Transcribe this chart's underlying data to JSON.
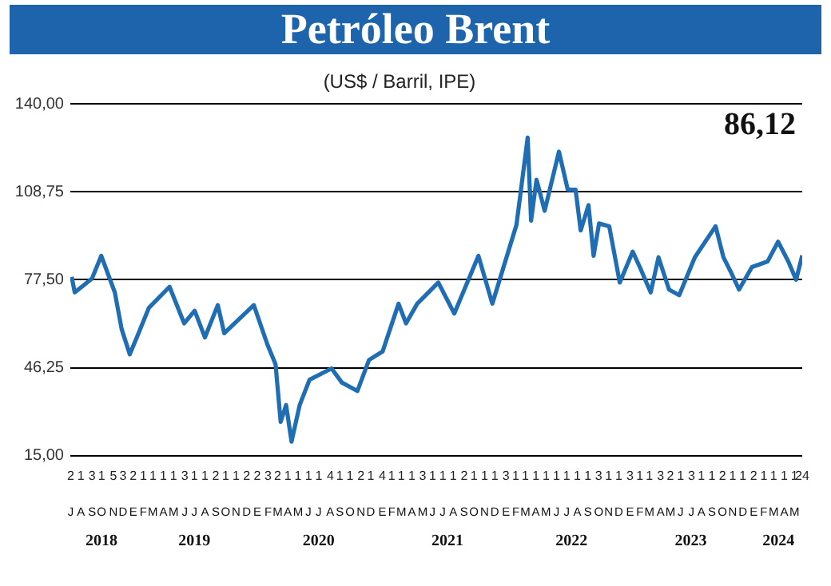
{
  "chart_data": {
    "type": "line",
    "title": "Petróleo Brent",
    "subtitle": "(US$ / Barril, IPE)",
    "color": "#1f6db3",
    "marker": "none",
    "grid": "y",
    "annotations": [
      "86,12",
      "J",
      "A",
      "S",
      "O",
      "N",
      "D",
      "E",
      "F",
      "M",
      "A",
      "M",
      "J",
      "J",
      "A",
      "S",
      "O",
      "N",
      "D",
      "E",
      "F",
      "M",
      "A",
      "M",
      "J",
      "J",
      "A",
      "S",
      "O",
      "N",
      "D",
      "E",
      "F",
      "M",
      "A",
      "M",
      "J",
      "J",
      "A",
      "S",
      "O",
      "N",
      "D",
      "E",
      "F",
      "M",
      "A",
      "M",
      "J",
      "J",
      "A",
      "S",
      "O",
      "N",
      "D",
      "E",
      "F",
      "M",
      "A",
      "M",
      "J",
      "J",
      "A",
      "S",
      "O",
      "N",
      "D",
      "E",
      "F",
      "M",
      "A",
      "M"
    ],
    "x": [
      "2018-07-05",
      "2018-07-14",
      "2018-08-14",
      "2018-09-03",
      "2018-09-30",
      "2018-11-09",
      "2018-11-29",
      "2018-12-23",
      "2019-01-16",
      "2019-02-17",
      "2019-04-19",
      "2019-06-01",
      "2019-07-02",
      "2019-08-01",
      "2019-09-08",
      "2019-09-27",
      "2019-12-23",
      "2020-02-01",
      "2020-02-25",
      "2020-03-11",
      "2020-03-27",
      "2020-04-12",
      "2020-05-06",
      "2020-06-04",
      "2020-08-08",
      "2020-09-07",
      "2020-10-23",
      "2020-11-26",
      "2021-01-05",
      "2021-02-21",
      "2021-03-15",
      "2021-04-17",
      "2021-06-18",
      "2021-08-04",
      "2021-10-14",
      "2021-11-24",
      "2022-02-03",
      "2022-03-08",
      "2022-03-18",
      "2022-04-03",
      "2022-04-27",
      "2022-06-08",
      "2022-07-04",
      "2022-07-27",
      "2022-08-11",
      "2022-09-03",
      "2022-09-18",
      "2022-10-04",
      "2022-11-03",
      "2022-12-04",
      "2023-01-11",
      "2023-02-01",
      "2023-03-05",
      "2023-03-28",
      "2023-04-28",
      "2023-05-28",
      "2023-07-13",
      "2023-09-12",
      "2023-10-05",
      "2023-10-28",
      "2023-11-20",
      "2023-12-28",
      "2024-02-12",
      "2024-03-14",
      "2024-04-13",
      "2024-05-06",
      "2024-05-24"
    ],
    "values": [
      78.5,
      73,
      76,
      78,
      86,
      73,
      60,
      51,
      58,
      67.5,
      75,
      62,
      66.5,
      57,
      68.5,
      58.5,
      68.5,
      54.5,
      47.5,
      27,
      33,
      20,
      33,
      42,
      46,
      41,
      38,
      49,
      52,
      69,
      62,
      69,
      76.5,
      65.5,
      86,
      69,
      97,
      128,
      98.5,
      113,
      102,
      123,
      109.5,
      109.5,
      95,
      104,
      86,
      97.5,
      96.5,
      76.5,
      87.5,
      82,
      73,
      85.5,
      74,
      72,
      85.5,
      96.5,
      85.5,
      80,
      74,
      82,
      84,
      91,
      84,
      77.5,
      86.12
    ],
    "ylim": [
      15,
      140
    ],
    "yticks": [
      {
        "value": 15,
        "label": "15,00"
      },
      {
        "value": 46.25,
        "label": "46,25"
      },
      {
        "value": 77.5,
        "label": "77,50"
      },
      {
        "value": 108.75,
        "label": "108,75"
      },
      {
        "value": 140,
        "label": "140,00"
      }
    ],
    "x2lim": [
      "2018-07-01",
      "2024-05-24"
    ],
    "x2ticks": [
      {
        "value": "2018-07-02",
        "label": "2"
      },
      {
        "value": "2018-08-01",
        "label": "1"
      },
      {
        "value": "2018-09-03",
        "label": "3"
      },
      {
        "value": "2018-10-01",
        "label": "1"
      },
      {
        "value": "2018-11-05",
        "label": "5"
      },
      {
        "value": "2018-12-03",
        "label": "3"
      },
      {
        "value": "2019-01-02",
        "label": "2"
      },
      {
        "value": "2019-02-01",
        "label": "1"
      },
      {
        "value": "2019-03-01",
        "label": "1"
      },
      {
        "value": "2019-04-01",
        "label": "1"
      },
      {
        "value": "2019-05-01",
        "label": "1"
      },
      {
        "value": "2019-06-03",
        "label": "3"
      },
      {
        "value": "2019-07-01",
        "label": "1"
      },
      {
        "value": "2019-08-01",
        "label": "1"
      },
      {
        "value": "2019-09-02",
        "label": "2"
      },
      {
        "value": "2019-10-01",
        "label": "1"
      },
      {
        "value": "2019-11-01",
        "label": "1"
      },
      {
        "value": "2019-12-02",
        "label": "2"
      },
      {
        "value": "2020-01-02",
        "label": "2"
      },
      {
        "value": "2020-02-03",
        "label": "3"
      },
      {
        "value": "2020-03-02",
        "label": "2"
      },
      {
        "value": "2020-04-01",
        "label": "1"
      },
      {
        "value": "2020-05-01",
        "label": "1"
      },
      {
        "value": "2020-06-01",
        "label": "1"
      },
      {
        "value": "2020-07-01",
        "label": "1"
      },
      {
        "value": "2020-08-04",
        "label": "4"
      },
      {
        "value": "2020-09-01",
        "label": "1"
      },
      {
        "value": "2020-10-01",
        "label": "1"
      },
      {
        "value": "2020-11-02",
        "label": "2"
      },
      {
        "value": "2020-12-01",
        "label": "1"
      },
      {
        "value": "2021-01-04",
        "label": "4"
      },
      {
        "value": "2021-02-01",
        "label": "1"
      },
      {
        "value": "2021-03-01",
        "label": "1"
      },
      {
        "value": "2021-04-01",
        "label": "1"
      },
      {
        "value": "2021-05-03",
        "label": "3"
      },
      {
        "value": "2021-06-01",
        "label": "1"
      },
      {
        "value": "2021-07-01",
        "label": "1"
      },
      {
        "value": "2021-08-01",
        "label": "1"
      },
      {
        "value": "2021-09-02",
        "label": "2"
      },
      {
        "value": "2021-10-01",
        "label": "1"
      },
      {
        "value": "2021-11-01",
        "label": "1"
      },
      {
        "value": "2021-12-01",
        "label": "1"
      },
      {
        "value": "2022-01-03",
        "label": "3"
      },
      {
        "value": "2022-02-01",
        "label": "1"
      },
      {
        "value": "2022-03-01",
        "label": "1"
      },
      {
        "value": "2022-04-01",
        "label": "1"
      },
      {
        "value": "2022-05-01",
        "label": "1"
      },
      {
        "value": "2022-06-01",
        "label": "1"
      },
      {
        "value": "2022-07-01",
        "label": "1"
      },
      {
        "value": "2022-08-01",
        "label": "1"
      },
      {
        "value": "2022-09-01",
        "label": "1"
      },
      {
        "value": "2022-10-03",
        "label": "3"
      },
      {
        "value": "2022-11-01",
        "label": "1"
      },
      {
        "value": "2022-12-01",
        "label": "1"
      },
      {
        "value": "2023-01-03",
        "label": "3"
      },
      {
        "value": "2023-02-01",
        "label": "1"
      },
      {
        "value": "2023-03-01",
        "label": "1"
      },
      {
        "value": "2023-04-03",
        "label": "3"
      },
      {
        "value": "2023-05-02",
        "label": "2"
      },
      {
        "value": "2023-06-01",
        "label": "1"
      },
      {
        "value": "2023-07-03",
        "label": "3"
      },
      {
        "value": "2023-08-01",
        "label": "1"
      },
      {
        "value": "2023-09-01",
        "label": "1"
      },
      {
        "value": "2023-10-02",
        "label": "2"
      },
      {
        "value": "2023-11-01",
        "label": "1"
      },
      {
        "value": "2023-12-01",
        "label": "1"
      },
      {
        "value": "2024-01-02",
        "label": "2"
      },
      {
        "value": "2024-02-01",
        "label": "1"
      },
      {
        "value": "2024-03-01",
        "label": "1"
      },
      {
        "value": "2024-04-01",
        "label": "1"
      },
      {
        "value": "2024-05-01",
        "label": "1"
      },
      {
        "value": "2024-05-24",
        "label": "24"
      }
    ],
    "xlim": [
      "2018-07-01",
      "2024-05-24"
    ],
    "xticks": [
      {
        "value": "2018-10-01",
        "label": "2018"
      },
      {
        "value": "2019-07-01",
        "label": "2019"
      },
      {
        "value": "2020-07-01",
        "label": "2020"
      },
      {
        "value": "2021-07-15",
        "label": "2021"
      },
      {
        "value": "2022-07-15",
        "label": "2022"
      },
      {
        "value": "2023-07-01",
        "label": "2023"
      },
      {
        "value": "2024-03-15",
        "label": "2024"
      }
    ]
  }
}
